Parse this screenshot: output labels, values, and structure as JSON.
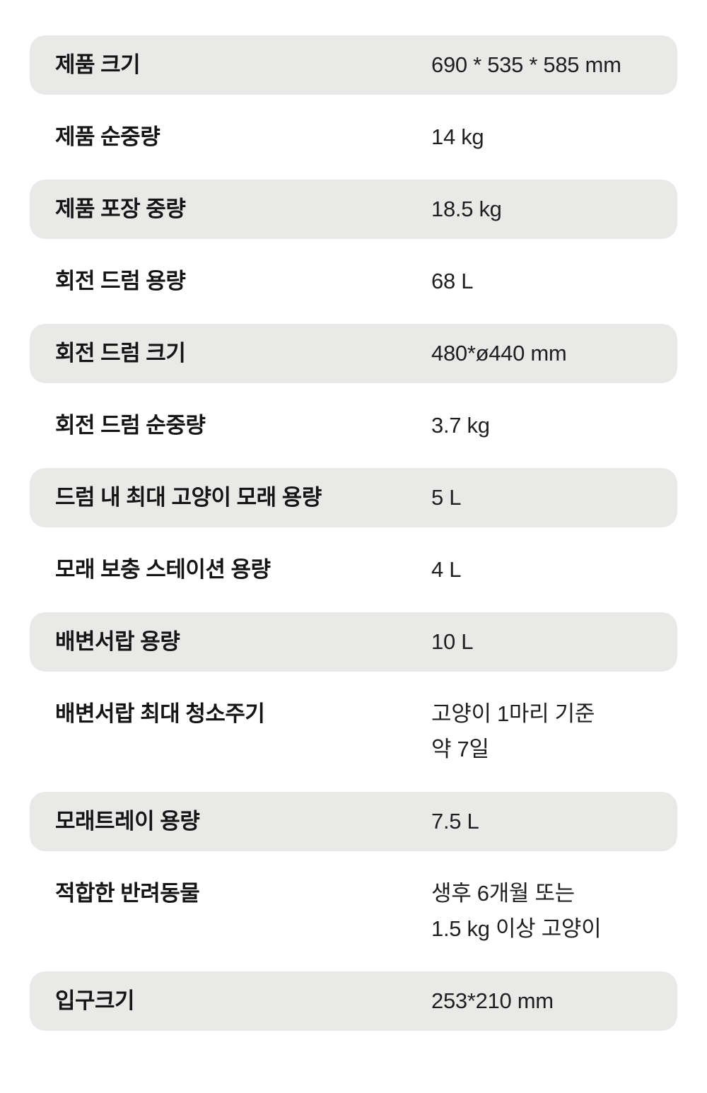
{
  "colors": {
    "page_bg": "#ffffff",
    "row_shaded_bg": "#e9e9e7",
    "label_color": "#151515",
    "value_color": "#1f1f1f"
  },
  "table": {
    "rows": [
      {
        "label": "제품 크기",
        "value": "690 * 535 * 585 mm",
        "shaded": true
      },
      {
        "label": "제품 순중량",
        "value": "14 kg",
        "shaded": false
      },
      {
        "label": "제품 포장 중량",
        "value": "18.5 kg",
        "shaded": true
      },
      {
        "label": "회전 드럼 용량",
        "value": "68 L",
        "shaded": false
      },
      {
        "label": "회전 드럼 크기",
        "value": "480*ø440 mm",
        "shaded": true
      },
      {
        "label": "회전 드럼 순중량",
        "value": "3.7 kg",
        "shaded": false
      },
      {
        "label": "드럼 내 최대 고양이 모래 용량",
        "value": "5 L",
        "shaded": true
      },
      {
        "label": "모래 보충 스테이션 용량",
        "value": "4 L",
        "shaded": false
      },
      {
        "label": "배변서랍 용량",
        "value": "10 L",
        "shaded": true
      },
      {
        "label": "배변서랍 최대 청소주기",
        "value": "고양이 1마리 기준\n약 7일",
        "shaded": false
      },
      {
        "label": "모래트레이 용량",
        "value": "7.5 L",
        "shaded": true
      },
      {
        "label": "적합한 반려동물",
        "value": "생후 6개월 또는\n1.5 kg 이상 고양이",
        "shaded": false
      },
      {
        "label": "입구크기",
        "value": "253*210 mm",
        "shaded": true
      }
    ]
  }
}
